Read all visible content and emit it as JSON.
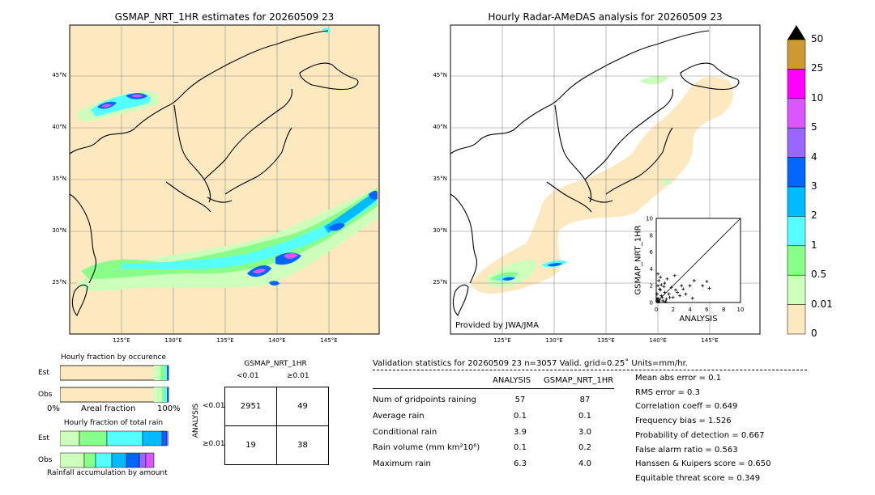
{
  "left_map": {
    "title": "GSMAP_NRT_1HR estimates for 20260509 23",
    "lat_labels": [
      "45°N",
      "40°N",
      "35°N",
      "30°N",
      "25°N"
    ],
    "lon_labels": [
      "125°E",
      "130°E",
      "135°E",
      "140°E",
      "145°E"
    ]
  },
  "right_map": {
    "title": "Hourly Radar-AMeDAS analysis for 20260509 23",
    "lat_labels": [
      "45°N",
      "40°N",
      "35°N",
      "30°N",
      "25°N"
    ],
    "lon_labels": [
      "125°E",
      "130°E",
      "135°E",
      "140°E",
      "145°E"
    ],
    "credit": "Provided by JWA/JMA"
  },
  "colorbar": {
    "labels": [
      "50",
      "25",
      "10",
      "5",
      "4",
      "3",
      "2",
      "1",
      "0.5",
      "0.01",
      "0"
    ],
    "colors": [
      "#cc9933",
      "#ff00ff",
      "#dd55ff",
      "#9966ff",
      "#0066ff",
      "#00bbff",
      "#55ffff",
      "#88ff88",
      "#ccffbb",
      "#fde9bf"
    ]
  },
  "scatter_inset": {
    "xlabel": "ANALYSIS",
    "ylabel": "GSMAP_NRT_1HR",
    "ticks": [
      "0",
      "2",
      "4",
      "6",
      "8",
      "10"
    ],
    "xlim": [
      0,
      10
    ],
    "ylim": [
      0,
      10
    ],
    "points": [
      [
        0.1,
        0.2
      ],
      [
        0.2,
        0.5
      ],
      [
        0.3,
        0.1
      ],
      [
        0.1,
        1.0
      ],
      [
        0.4,
        0.3
      ],
      [
        0.5,
        1.5
      ],
      [
        0.2,
        2.0
      ],
      [
        0.6,
        0.8
      ],
      [
        0.8,
        0.2
      ],
      [
        1.0,
        1.2
      ],
      [
        0.3,
        2.6
      ],
      [
        1.2,
        0.4
      ],
      [
        1.5,
        1.0
      ],
      [
        0.5,
        3.0
      ],
      [
        2.0,
        0.6
      ],
      [
        1.8,
        1.8
      ],
      [
        2.5,
        1.2
      ],
      [
        3.0,
        2.0
      ],
      [
        2.2,
        3.2
      ],
      [
        3.5,
        1.0
      ],
      [
        4.0,
        2.0
      ],
      [
        1.0,
        2.3
      ],
      [
        0.2,
        0.1
      ],
      [
        0.1,
        0.4
      ],
      [
        0.7,
        0.6
      ],
      [
        0.9,
        1.9
      ],
      [
        1.3,
        2.8
      ],
      [
        2.8,
        0.8
      ],
      [
        3.2,
        1.6
      ],
      [
        4.5,
        2.6
      ],
      [
        5.5,
        2.0
      ],
      [
        6.0,
        2.5
      ],
      [
        6.3,
        1.7
      ],
      [
        4.3,
        0.5
      ],
      [
        0.4,
        1.6
      ],
      [
        0.6,
        2.1
      ],
      [
        1.1,
        0.1
      ],
      [
        0.2,
        3.4
      ],
      [
        1.6,
        0.6
      ],
      [
        2.3,
        1.5
      ]
    ]
  },
  "fraction_occurrence": {
    "title": "Hourly fraction by occurence",
    "rows": [
      "Est",
      "Obs"
    ],
    "axis_left": "0%",
    "axis_mid": "Areal fraction",
    "axis_right": "100%"
  },
  "fraction_total": {
    "title": "Hourly fraction of total rain",
    "rows": [
      "Est",
      "Obs"
    ],
    "footer": "Rainfall accumulation by amount"
  },
  "contingency": {
    "title": "GSMAP_NRT_1HR",
    "col_headers": [
      "<0.01",
      "≥0.01"
    ],
    "row_axis": "ANALYSIS",
    "row_headers": [
      "<0.01",
      "≥0.01"
    ],
    "cells": [
      [
        "2951",
        "49"
      ],
      [
        "19",
        "38"
      ]
    ]
  },
  "validation": {
    "header": "Validation statistics for 20260509 23  n=3057 Valid. grid=0.25˚ Units=mm/hr.",
    "col_analysis": "ANALYSIS",
    "col_gsmap": "GSMAP_NRT_1HR",
    "rows": [
      {
        "label": "Num of gridpoints raining",
        "analysis": "57",
        "gsmap": "87"
      },
      {
        "label": "Average rain",
        "analysis": "0.1",
        "gsmap": "0.1"
      },
      {
        "label": "Conditional rain",
        "analysis": "3.9",
        "gsmap": "3.0"
      },
      {
        "label": "Rain volume (mm km²10⁶)",
        "analysis": "0.1",
        "gsmap": "0.2"
      },
      {
        "label": "Maximum rain",
        "analysis": "6.3",
        "gsmap": "4.0"
      }
    ],
    "scores": [
      "Mean abs error =    0.1",
      "RMS error =    0.3",
      "Correlation coeff =  0.649",
      "Frequency bias =  1.526",
      "Probability of detection =  0.667",
      "False alarm ratio =  0.563",
      "Hanssen & Kuipers score =  0.650",
      "Equitable threat score =  0.349"
    ]
  }
}
